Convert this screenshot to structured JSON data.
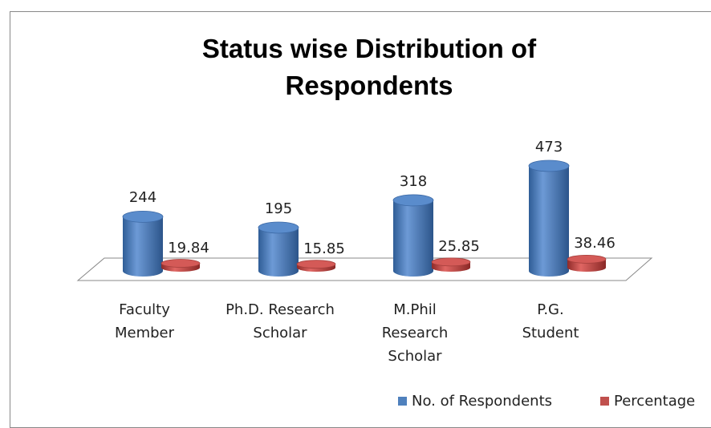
{
  "chart_data": {
    "type": "bar",
    "title": "Status wise Distribution of Respondents",
    "categories": [
      "Faculty Member",
      "Ph.D. Research Scholar",
      "M.Phil Research Scholar",
      "P.G. Student"
    ],
    "series": [
      {
        "name": "No. of Respondents",
        "color": "#4f81bd",
        "values": [
          244,
          195,
          318,
          473
        ]
      },
      {
        "name": "Percentage",
        "color": "#c0504d",
        "values": [
          19.84,
          15.85,
          25.85,
          38.46
        ]
      }
    ],
    "legend": "bottom-right"
  }
}
